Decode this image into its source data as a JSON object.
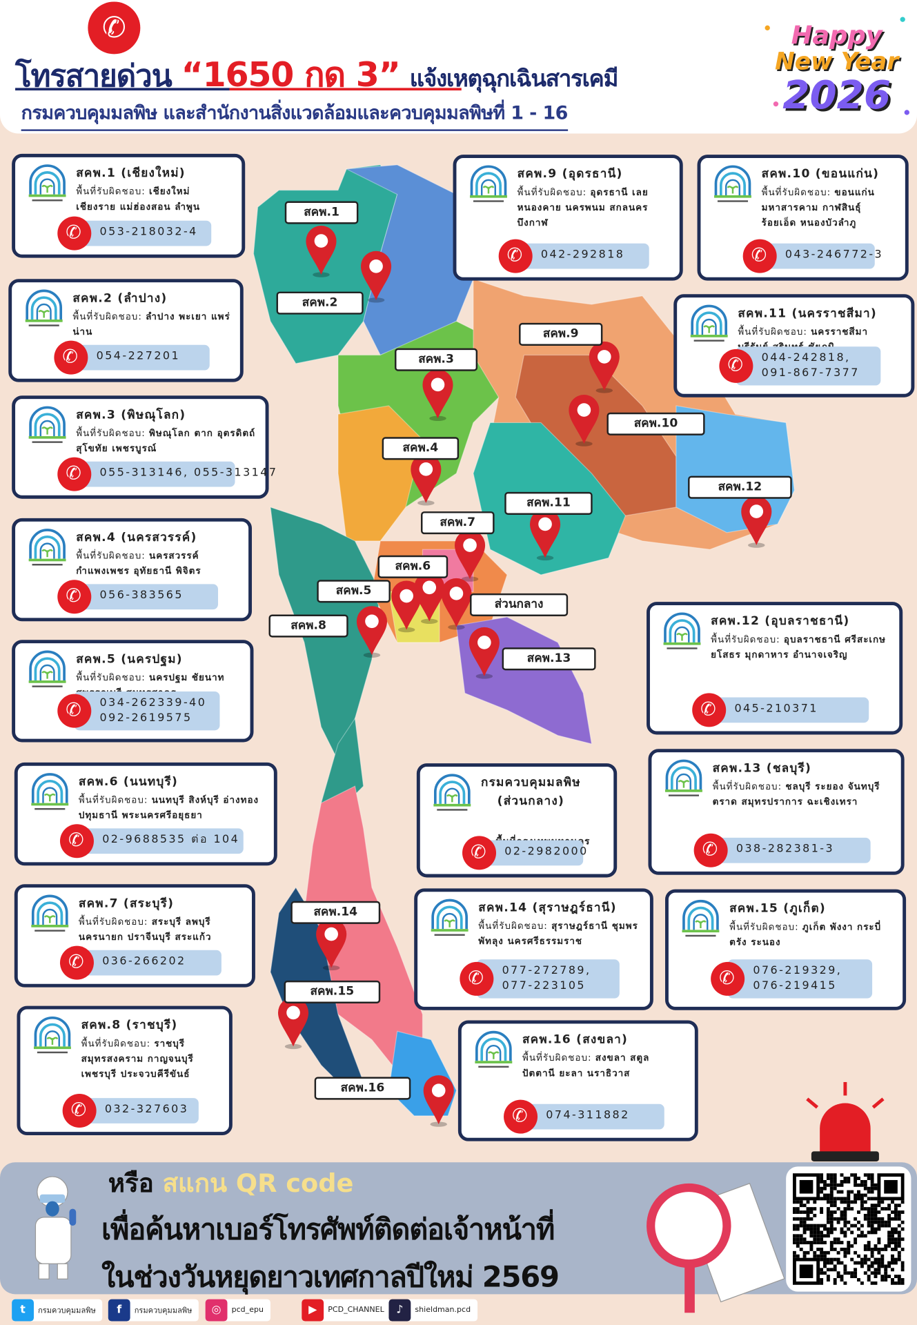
{
  "header": {
    "title_prefix": "โทรสายด่วน",
    "hotline": "“1650 กด 3”",
    "title_suffix": "แจ้งเหตุฉุกเฉินสารเคมี",
    "subtitle": "กรมควบคุมมลพิษ และสำนักงานสิ่งแวดล้อมและควบคุมมลพิษที่ 1 - 16",
    "new_year": {
      "happy": "Happy",
      "new_year": "New Year",
      "year": "2026"
    }
  },
  "area_label": "พื้นที่รับผิดชอบ:",
  "offices": [
    {
      "title": "สคพ.1 (เชียงใหม่)",
      "area": "เชียงใหม่ เชียงราย แม่ฮ่องสอน ลำพูน",
      "phone": "053-218032-4"
    },
    {
      "title": "สคพ.2 (ลำปาง)",
      "area": "ลำปาง พะเยา แพร่ น่าน",
      "phone": "054-227201"
    },
    {
      "title": "สคพ.3 (พิษณุโลก)",
      "area": "พิษณุโลก ตาก อุตรดิตถ์ สุโขทัย เพชรบูรณ์",
      "phone": "055-313146, 055-313147"
    },
    {
      "title": "สคพ.4 (นครสวรรค์)",
      "area": "นครสวรรค์ กำแพงเพชร อุทัยธานี พิจิตร",
      "phone": "056-383565"
    },
    {
      "title": "สคพ.5 (นครปฐม)",
      "area": "นครปฐม ชัยนาท สุพรรณบุรี สมุทรสาคร",
      "phone": "034-262339-40\n092-2619575"
    },
    {
      "title": "สคพ.6 (นนทบุรี)",
      "area": "นนทบุรี สิงห์บุรี อ่างทอง ปทุมธานี พระนครศรีอยุธยา",
      "phone": "02-9688535 ต่อ 104"
    },
    {
      "title": "สคพ.7 (สระบุรี)",
      "area": "สระบุรี ลพบุรี นครนายก ปราจีนบุรี สระแก้ว",
      "phone": "036-266202"
    },
    {
      "title": "สคพ.8 (ราชบุรี)",
      "area": "ราชบุรี สมุทรสงคราม กาญจนบุรี เพชรบุรี ประจวบคีรีขันธ์",
      "phone": "032-327603"
    },
    {
      "title": "สคพ.9 (อุดรธานี)",
      "area": "อุดรธานี เลย หนองคาย นครพนม สกลนคร บึงกาฬ",
      "phone": "042-292818"
    },
    {
      "title": "สคพ.10 (ขอนแก่น)",
      "area": "ขอนแก่น มหาสารคาม กาฬสินธุ์ ร้อยเอ็ด หนองบัวลำภู",
      "phone": "043-246772-3"
    },
    {
      "title": "สคพ.11 (นครราชสีมา)",
      "area": "นครราชสีมา บุรีรัมย์ สุรินทร์ ชัยภูมิ",
      "phone": "044-242818,\n091-867-7377"
    },
    {
      "title": "สคพ.12 (อุบลราชธานี)",
      "area": "อุบลราชธานี ศรีสะเกษ ยโสธร มุกดาหาร อำนาจเจริญ",
      "phone": "045-210371"
    },
    {
      "title": "สคพ.13 (ชลบุรี)",
      "area": "ชลบุรี ระยอง จันทบุรี ตราด สมุทรปราการ ฉะเชิงเทรา",
      "phone": "038-282381-3"
    },
    {
      "title": "กรมควบคุมมลพิษ\n(ส่วนกลาง)",
      "area": "พื้นที่กรุงเทพมหานคร",
      "phone": "02-2982000"
    },
    {
      "title": "สคพ.14 (สุราษฎร์ธานี)",
      "area": "สุราษฎร์ธานี ชุมพร พัทลุง นครศรีธรรมราช",
      "phone": "077-272789,\n077-223105"
    },
    {
      "title": "สคพ.15 (ภูเก็ต)",
      "area": "ภูเก็ต พังงา กระบี่ ตรัง ระนอง",
      "phone": "076-219329,\n076-219415"
    },
    {
      "title": "สคพ.16 (สงขลา)",
      "area": "สงขลา สตูล ปัตตานี ยะลา นราธิวาส",
      "phone": "074-311882"
    }
  ],
  "map_labels": [
    "สคพ.1",
    "สคพ.2",
    "สคพ.3",
    "สคพ.9",
    "สคพ.10",
    "สคพ.4",
    "สคพ.12",
    "สคพ.11",
    "สคพ.7",
    "สคพ.6",
    "สคพ.5",
    "ส่วนกลาง",
    "สคพ.8",
    "สคพ.13",
    "สคพ.14",
    "สคพ.15",
    "สคพ.16"
  ],
  "banner": {
    "or": "หรือ",
    "scan": "สแกน QR code",
    "line1": "เพื่อค้นหาเบอร์โทรศัพท์ติดต่อเจ้าหน้าที่",
    "line2": "ในช่วงวันหยุดยาวเทศกาลปีใหม่ 2569"
  },
  "social": [
    {
      "icon": "twitter-icon",
      "handle": "กรมควบคุมมลพิษ",
      "color": "#1da1f2"
    },
    {
      "icon": "facebook-icon",
      "handle": "กรมควบคุมมลพิษ",
      "color": "#1a3a8a"
    },
    {
      "icon": "instagram-icon",
      "handle": "pcd_epu",
      "color": "#e1306c"
    },
    {
      "icon": "youtube-icon",
      "handle": "PCD_CHANNEL",
      "color": "#e31e25"
    },
    {
      "icon": "tiktok-icon",
      "handle": "shieldman.pcd",
      "color": "#222244"
    }
  ],
  "colors": {
    "navy": "#1c2a6b",
    "red": "#e31e25",
    "background": "#f6e2d4",
    "phone_pill": "#bcd4ec"
  }
}
